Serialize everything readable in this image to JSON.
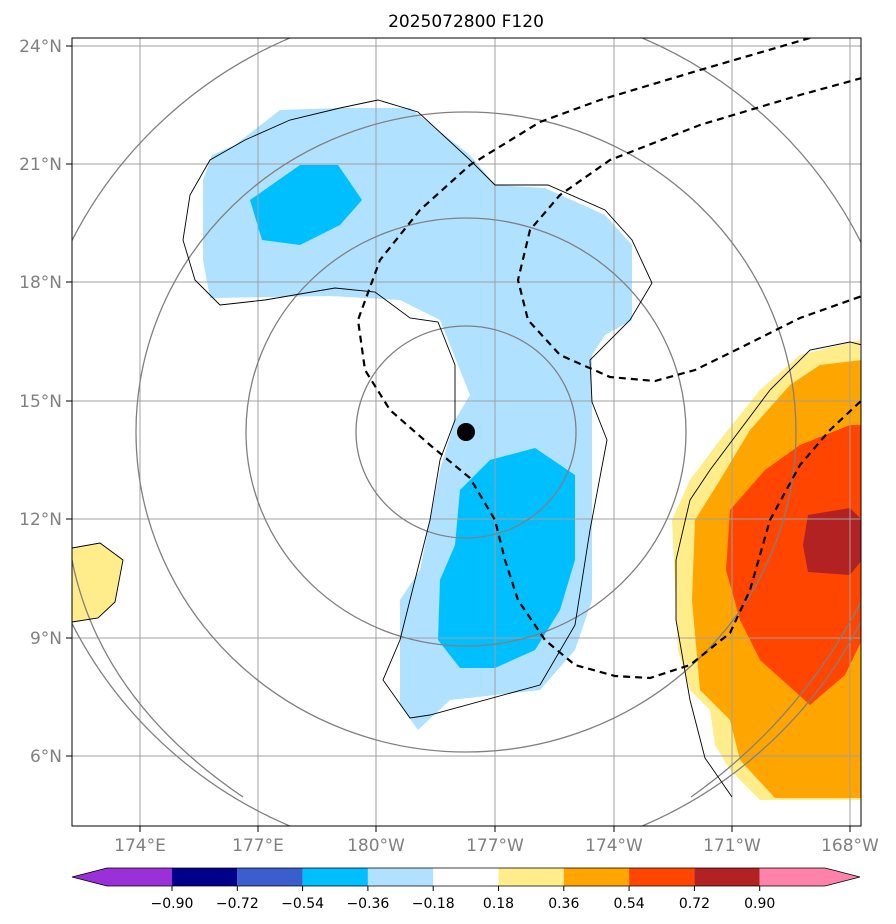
{
  "title": "2025072800 F120",
  "lat_labels": [
    "24°N",
    "21°N",
    "18°N",
    "15°N",
    "12°N",
    "9°N",
    "6°N"
  ],
  "lon_labels": [
    "174°E",
    "177°E",
    "180°W",
    "177°W",
    "174°W",
    "171°W",
    "168°W"
  ],
  "colorbar": {
    "ticks": [
      "−0.90",
      "−0.72",
      "−0.54",
      "−0.36",
      "−0.18",
      "0.18",
      "0.36",
      "0.54",
      "0.72",
      "0.90"
    ],
    "colors": [
      "#9b30d9",
      "#00008b",
      "#3a5fcd",
      "#00bfff",
      "#b0e2ff",
      "#ffffff",
      "#ffec8b",
      "#ffa500",
      "#ff4500",
      "#b22222",
      "#ff82ab"
    ]
  },
  "colors": {
    "light_blue": "#b0e2ff",
    "deep_sky_blue": "#00bfff",
    "light_yellow": "#ffec8b",
    "orange": "#ffa500",
    "orange_red": "#ff4500",
    "firebrick": "#b22222",
    "grid": "#a0a0a0",
    "contour_gray": "#808080"
  },
  "center_marker": {
    "lat": 14.2,
    "lon": -177.8
  }
}
